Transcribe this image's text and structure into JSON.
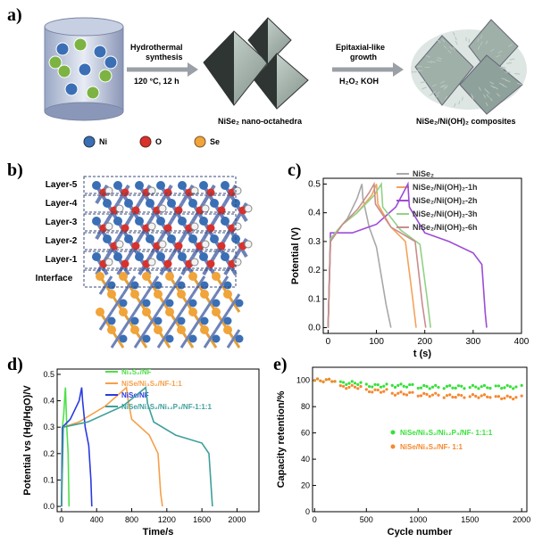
{
  "panels": {
    "a": {
      "letter": "a)",
      "step1_line1": "Hydrothermal",
      "step1_line2": "synthesis",
      "step1_condition": "120 °C, 12 h",
      "product1": "NiSe₂ nano-octahedra",
      "step2_line1": "Epitaxial-like",
      "step2_line2": "growth",
      "step2_condition": "H₂O₂ KOH",
      "product2": "NiSe₂/Ni(OH)₂ composites",
      "legend": [
        {
          "symbol": "Ni",
          "label": "Ni",
          "color": "#3a6fb5"
        },
        {
          "symbol": "O",
          "label": "O",
          "color": "#d9312b"
        },
        {
          "symbol": "Se",
          "label": "Se",
          "color": "#f0a43a"
        }
      ]
    },
    "b": {
      "letter": "b)",
      "layers": [
        "Layer-5",
        "Layer-4",
        "Layer-3",
        "Layer-2",
        "Layer-1",
        "Interface"
      ]
    },
    "c": {
      "letter": "c)"
    },
    "d": {
      "letter": "d)"
    },
    "e": {
      "letter": "e)"
    }
  },
  "chart_data": [
    {
      "id": "c",
      "type": "line",
      "xlabel": "t (s)",
      "ylabel": "Potential (V)",
      "xlim": [
        -10,
        400
      ],
      "ylim": [
        -0.02,
        0.52
      ],
      "xticks": [
        0,
        100,
        200,
        300,
        400
      ],
      "yticks": [
        0.0,
        0.1,
        0.2,
        0.3,
        0.4,
        0.5
      ],
      "legend_position": "top-right",
      "series": [
        {
          "name": "NiSe₂",
          "color": "#a8a8a8",
          "x": [
            0,
            5,
            20,
            40,
            60,
            70,
            72,
            85,
            100,
            120,
            130
          ],
          "y": [
            0.0,
            0.3,
            0.34,
            0.38,
            0.45,
            0.5,
            0.45,
            0.35,
            0.28,
            0.08,
            0.0
          ]
        },
        {
          "name": "NiSe₂/Ni(OH)₂-1h",
          "color": "#f3a35b",
          "x": [
            0,
            5,
            30,
            60,
            90,
            100,
            103,
            130,
            160,
            175,
            182
          ],
          "y": [
            0.0,
            0.31,
            0.36,
            0.4,
            0.46,
            0.5,
            0.43,
            0.35,
            0.3,
            0.1,
            0.0
          ]
        },
        {
          "name": "NiSe₂/Ni(OH)₂-2h",
          "color": "#9d4bd6",
          "x": [
            0,
            5,
            50,
            100,
            140,
            165,
            168,
            200,
            250,
            300,
            318,
            325,
            328
          ],
          "y": [
            0.0,
            0.33,
            0.33,
            0.36,
            0.42,
            0.5,
            0.42,
            0.33,
            0.3,
            0.26,
            0.22,
            0.05,
            0.0
          ]
        },
        {
          "name": "NiSe₂/Ni(OH)₂-3h",
          "color": "#90d287",
          "x": [
            0,
            5,
            30,
            60,
            95,
            110,
            113,
            150,
            190,
            205,
            212
          ],
          "y": [
            0.0,
            0.31,
            0.36,
            0.4,
            0.46,
            0.5,
            0.42,
            0.34,
            0.29,
            0.1,
            0.0
          ]
        },
        {
          "name": "NiSe₂/Ni(OH)₂-6h",
          "color": "#c98d8d",
          "x": [
            0,
            5,
            30,
            60,
            85,
            95,
            98,
            130,
            180,
            195,
            202
          ],
          "y": [
            0.0,
            0.3,
            0.36,
            0.41,
            0.47,
            0.5,
            0.43,
            0.35,
            0.3,
            0.08,
            0.0
          ]
        }
      ]
    },
    {
      "id": "d",
      "type": "line",
      "xlabel": "Time/s",
      "ylabel": "Potential vs (Hg/HgO)/V",
      "xlim": [
        -50,
        2250
      ],
      "ylim": [
        -0.02,
        0.52
      ],
      "xticks": [
        0,
        400,
        800,
        1200,
        1600,
        2000
      ],
      "yticks": [
        0.0,
        0.1,
        0.2,
        0.3,
        0.4,
        0.5
      ],
      "legend_position": "top-right",
      "series": [
        {
          "name": "Ni₃S₂/NF",
          "color": "#4fe04a",
          "x": [
            0,
            10,
            25,
            40,
            45,
            50,
            60,
            75,
            85
          ],
          "y": [
            0.0,
            0.3,
            0.35,
            0.43,
            0.45,
            0.4,
            0.3,
            0.2,
            0.0
          ]
        },
        {
          "name": "NiSe/Ni₃S₂/NF-1:1",
          "color": "#f5a04a",
          "x": [
            0,
            20,
            200,
            500,
            740,
            760,
            800,
            1000,
            1100,
            1130,
            1150
          ],
          "y": [
            0.0,
            0.3,
            0.32,
            0.38,
            0.45,
            0.4,
            0.33,
            0.27,
            0.2,
            0.05,
            0.0
          ]
        },
        {
          "name": "NiSe/NF",
          "color": "#2b3ae0",
          "x": [
            0,
            10,
            100,
            200,
            230,
            240,
            270,
            310,
            335,
            345
          ],
          "y": [
            0.0,
            0.3,
            0.33,
            0.4,
            0.45,
            0.4,
            0.3,
            0.23,
            0.1,
            0.0
          ]
        },
        {
          "name": "NiSe/Ni₃S₂/Ni₁₂P₅/NF-1:1:1",
          "color": "#3f9f9a",
          "x": [
            0,
            20,
            300,
            700,
            960,
            980,
            1050,
            1300,
            1600,
            1680,
            1710,
            1720
          ],
          "y": [
            0.0,
            0.3,
            0.32,
            0.38,
            0.45,
            0.39,
            0.32,
            0.27,
            0.24,
            0.2,
            0.05,
            0.0
          ]
        }
      ]
    },
    {
      "id": "e",
      "type": "scatter",
      "xlabel": "Cycle number",
      "ylabel": "Capacity retention/%",
      "xlim": [
        -20,
        2050
      ],
      "ylim": [
        0,
        110
      ],
      "xticks": [
        0,
        500,
        1000,
        1500,
        2000
      ],
      "yticks": [
        0,
        20,
        40,
        60,
        80,
        100
      ],
      "legend_position": "center-right",
      "series": [
        {
          "name": "NiSe/Ni₃S₂/Ni₁₂P₅/NF- 1:1:1",
          "color": "#37e03a",
          "x": [
            0,
            250,
            500,
            750,
            1000,
            1250,
            1500,
            1750,
            2000
          ],
          "y": [
            100,
            98,
            96,
            96,
            95,
            95,
            95,
            95,
            95
          ]
        },
        {
          "name": "NiSe/Ni₃S₂/NF- 1:1",
          "color": "#f5882f",
          "x": [
            0,
            250,
            500,
            750,
            1000,
            1250,
            1500,
            1750,
            2000
          ],
          "y": [
            100,
            95,
            92,
            90,
            89,
            88,
            88,
            87,
            87
          ]
        }
      ]
    }
  ]
}
